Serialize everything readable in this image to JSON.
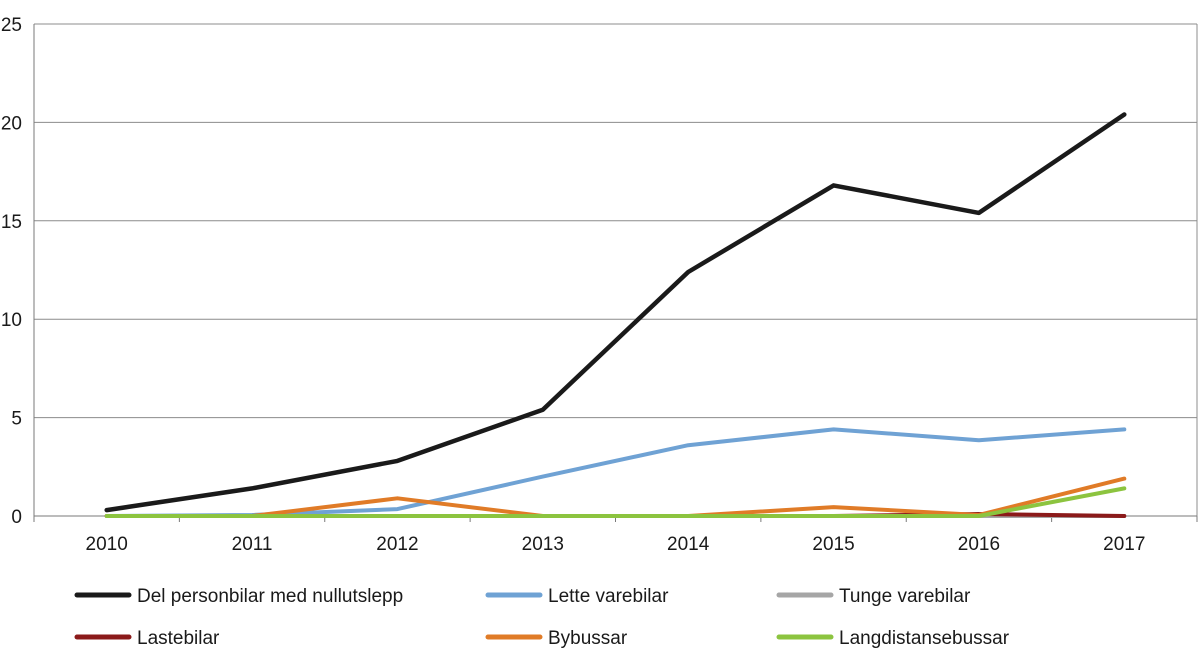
{
  "chart_data": {
    "type": "line",
    "title": "",
    "xlabel": "",
    "ylabel": "",
    "x": [
      "2010",
      "2011",
      "2012",
      "2013",
      "2014",
      "2015",
      "2016",
      "2017"
    ],
    "ylim": [
      0,
      25
    ],
    "yticks": [
      0,
      5,
      10,
      15,
      20,
      25
    ],
    "grid": "horizontal",
    "legend_position": "bottom",
    "series": [
      {
        "name": "Del personbilar med nullutslepp",
        "color": "#1a1a1a",
        "values": [
          0.3,
          1.4,
          2.8,
          5.4,
          12.4,
          16.8,
          15.4,
          20.4
        ]
      },
      {
        "name": "Lette varebilar",
        "color": "#6fa2d4",
        "values": [
          0,
          0.05,
          0.35,
          2.0,
          3.6,
          4.4,
          3.85,
          4.4
        ]
      },
      {
        "name": "Tunge varebilar",
        "color": "#a6a6a6",
        "values": [
          0,
          0,
          0,
          0,
          0,
          0,
          0,
          0
        ]
      },
      {
        "name": "Lastebilar",
        "color": "#8b1a1a",
        "values": [
          0,
          0,
          0,
          0,
          0,
          0,
          0.1,
          0
        ]
      },
      {
        "name": "Bybussar",
        "color": "#e07b27",
        "values": [
          0,
          0,
          0.9,
          0,
          0,
          0.45,
          0.05,
          1.9
        ]
      },
      {
        "name": "Langdistansebussar",
        "color": "#8cc43f",
        "values": [
          0,
          0,
          0,
          0,
          0,
          0,
          0,
          1.4
        ]
      }
    ]
  }
}
